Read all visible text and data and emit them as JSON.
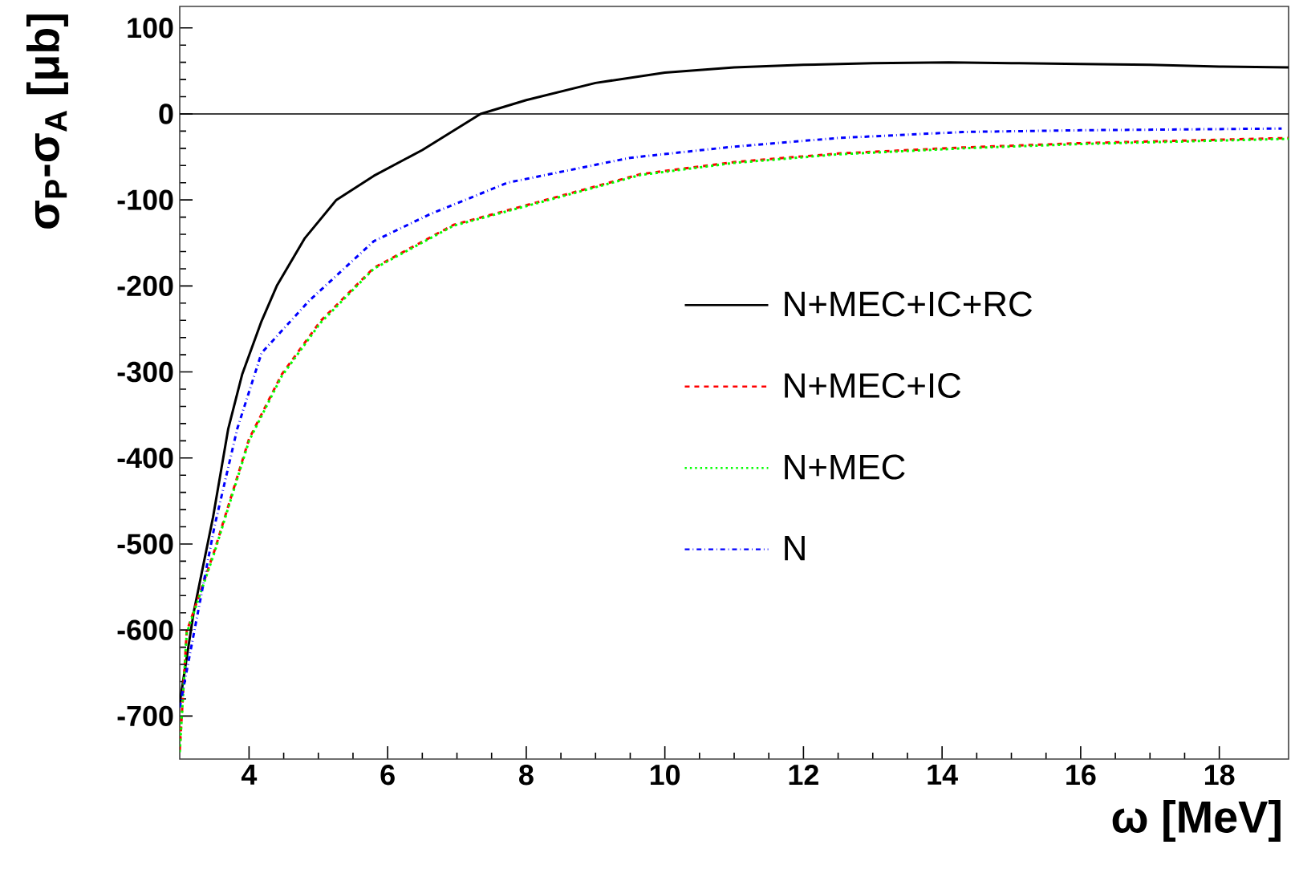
{
  "chart_data": {
    "type": "line",
    "xlabel": "ω [MeV]",
    "ylabel": "σ$_{P}$-σ$_{A}$ [μb]",
    "xlim": [
      3,
      19
    ],
    "ylim": [
      -750,
      125
    ],
    "xticks": [
      4,
      6,
      8,
      10,
      12,
      14,
      16,
      18
    ],
    "yticks": [
      -700,
      -600,
      -500,
      -400,
      -300,
      -200,
      -100,
      0,
      100
    ],
    "grid": false,
    "legend": "right",
    "ref_lines": [
      {
        "axis": "y",
        "value": 0,
        "color": "#000000"
      }
    ],
    "series": [
      {
        "name": "N+MEC+IC+RC",
        "color": "#000000",
        "line_style": "solid",
        "x": [
          3.0,
          3.2,
          3.48,
          3.7,
          3.9,
          4.18,
          4.4,
          4.8,
          5.26,
          5.8,
          6.5,
          7.34,
          8,
          9,
          10,
          11,
          12,
          13,
          14.1,
          15,
          16,
          17,
          18,
          19
        ],
        "values": [
          -685,
          -580,
          -469,
          -366,
          -303,
          -241,
          -200,
          -145,
          -100,
          -72,
          -42,
          0,
          16,
          36,
          48,
          54,
          57,
          59,
          60,
          59,
          58,
          57,
          55,
          54
        ]
      },
      {
        "name": "N+MEC+IC",
        "color": "#ff0000",
        "line_style": "dashed",
        "x": [
          3.0,
          3.1,
          3.5,
          4.0,
          4.47,
          5.03,
          5.8,
          6.95,
          8.1,
          9.65,
          11,
          12.5,
          14.3,
          16,
          17.5,
          19
        ],
        "values": [
          -740,
          -602,
          -508,
          -378,
          -303,
          -241,
          -179,
          -129,
          -104,
          -70,
          -56,
          -46,
          -39,
          -34,
          -31,
          -28
        ]
      },
      {
        "name": "N+MEC",
        "color": "#00ff00",
        "line_style": "dotted",
        "x": [
          3.0,
          3.1,
          3.5,
          4.0,
          4.47,
          5.03,
          5.8,
          6.95,
          8.1,
          9.65,
          11,
          12.5,
          14.3,
          16,
          17.5,
          19
        ],
        "values": [
          -742,
          -604,
          -510,
          -380,
          -305,
          -243,
          -180,
          -130,
          -105,
          -71,
          -57,
          -47,
          -40,
          -35,
          -32,
          -29
        ]
      },
      {
        "name": "N",
        "color": "#0000ff",
        "line_style": "dashdot",
        "x": [
          3.0,
          3.18,
          3.5,
          3.83,
          4.18,
          4.87,
          5.8,
          6.6,
          7.73,
          9.5,
          11,
          12.5,
          14.3,
          16,
          17.5,
          18.9
        ],
        "values": [
          -690,
          -614,
          -480,
          -366,
          -278,
          -217,
          -148,
          -117,
          -80,
          -51,
          -38,
          -28,
          -21,
          -19,
          -18,
          -17
        ]
      }
    ]
  }
}
